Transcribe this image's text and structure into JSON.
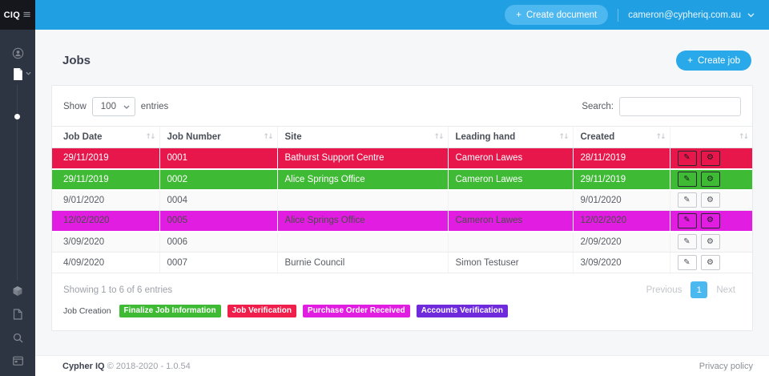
{
  "colors": {
    "topbar": "#219fe3",
    "create_document_button": "#4db7ef",
    "create_job_button": "#29a9e9",
    "sidebar": "#2e3542",
    "logo_background": "#15171c",
    "row_red": "#e7174b",
    "row_green": "#3fba35",
    "row_magenta": "#e11de1",
    "badge_purple": "#6f2bdb",
    "pagination_active": "#4cb8f0"
  },
  "topbar": {
    "logo": "CIQ",
    "create_document_label": "Create document",
    "plus": "+",
    "user_email": "cameron@cypheriq.com.au"
  },
  "page": {
    "title": "Jobs",
    "create_job_label": "Create job",
    "plus": "+"
  },
  "table": {
    "show_label": "Show",
    "page_size": "100",
    "entries_label": "entries",
    "search_label": "Search:",
    "search_value": "",
    "columns": [
      "Job Date",
      "Job Number",
      "Site",
      "Leading hand",
      "Created",
      ""
    ],
    "rows": [
      {
        "job_date": "29/11/2019",
        "job_number": "0001",
        "site": "Bathurst Support Centre",
        "leading_hand": "Cameron Lawes",
        "created": "28/11/2019",
        "bg": "#e7174b",
        "text": "#ffffff"
      },
      {
        "job_date": "29/11/2019",
        "job_number": "0002",
        "site": "Alice Springs Office",
        "leading_hand": "Cameron Lawes",
        "created": "29/11/2019",
        "bg": "#3fba35",
        "text": "#ffffff"
      },
      {
        "job_date": "9/01/2020",
        "job_number": "0004",
        "site": "",
        "leading_hand": "",
        "created": "9/01/2020",
        "bg": "",
        "text": ""
      },
      {
        "job_date": "12/02/2020",
        "job_number": "0005",
        "site": "Alice Springs Office",
        "leading_hand": "Cameron Lawes",
        "created": "12/02/2020",
        "bg": "#e11de1",
        "text": "#4c4c4c"
      },
      {
        "job_date": "3/09/2020",
        "job_number": "0006",
        "site": "",
        "leading_hand": "",
        "created": "2/09/2020",
        "bg": "",
        "text": ""
      },
      {
        "job_date": "4/09/2020",
        "job_number": "0007",
        "site": "Burnie Council",
        "leading_hand": "Simon Testuser",
        "created": "3/09/2020",
        "bg": "",
        "text": ""
      }
    ],
    "info": "Showing 1 to 6 of 6 entries",
    "pagination": {
      "previous": "Previous",
      "current": "1",
      "next": "Next"
    }
  },
  "legend": [
    {
      "label": "Job Creation",
      "bg": "",
      "text": "#4a4f57"
    },
    {
      "label": "Finalize Job Information",
      "bg": "#3fba35",
      "text": "#ffffff"
    },
    {
      "label": "Job Verification",
      "bg": "#ef1e4b",
      "text": "#ffffff"
    },
    {
      "label": "Purchase Order Received",
      "bg": "#e11de1",
      "text": "#ffffff"
    },
    {
      "label": "Accounts Verification",
      "bg": "#6f2bdb",
      "text": "#ffffff"
    }
  ],
  "footer": {
    "brand": "Cypher IQ",
    "copyright": "© 2018-2020 - 1.0.54",
    "privacy_label": "Privacy policy"
  }
}
